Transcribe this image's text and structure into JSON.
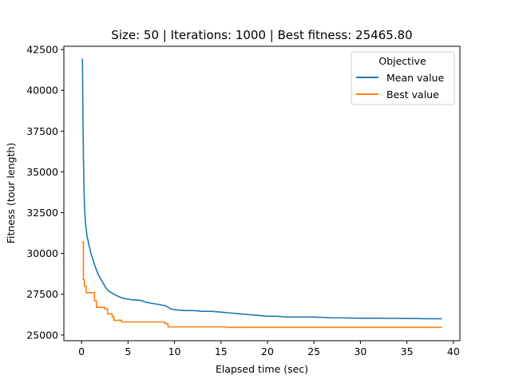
{
  "chart_data": {
    "type": "line",
    "title": "Size: 50 | Iterations: 1000 | Best fitness: 25465.80",
    "xlabel": "Elapsed time (sec)",
    "ylabel": "Fitness (tour length)",
    "xlim": [
      -1.9,
      40.7
    ],
    "ylim": [
      24650,
      42700
    ],
    "xticks": [
      0,
      5,
      10,
      15,
      20,
      25,
      30,
      35,
      40
    ],
    "yticks": [
      25000,
      27500,
      30000,
      32500,
      35000,
      37500,
      40000,
      42500
    ],
    "grid": false,
    "legend": {
      "title": "Objective",
      "placement": "top-right"
    },
    "series": [
      {
        "name": "Mean value",
        "color": "#1f77b4",
        "x": [
          0.1,
          0.15,
          0.2,
          0.25,
          0.3,
          0.4,
          0.5,
          0.6,
          0.7,
          0.8,
          0.9,
          1.0,
          1.2,
          1.4,
          1.6,
          1.8,
          2.0,
          2.3,
          2.6,
          2.9,
          3.2,
          3.5,
          4.0,
          4.5,
          5.0,
          5.5,
          6.0,
          6.5,
          7.0,
          7.5,
          8.0,
          8.5,
          9.0,
          9.3,
          9.6,
          10.0,
          11.0,
          12.0,
          13.0,
          14.0,
          15.0,
          16.0,
          17.0,
          18.0,
          19.0,
          20.0,
          21.0,
          22.0,
          23.0,
          24.0,
          25.0,
          26.0,
          27.0,
          28.0,
          29.0,
          30.0,
          31.0,
          32.0,
          33.0,
          34.0,
          35.0,
          36.0,
          37.0,
          38.0,
          38.7
        ],
        "y": [
          41900,
          38500,
          36000,
          34500,
          33200,
          32000,
          31500,
          31000,
          30800,
          30500,
          30300,
          30000,
          29700,
          29300,
          29000,
          28700,
          28500,
          28200,
          27900,
          27700,
          27600,
          27500,
          27350,
          27250,
          27200,
          27150,
          27150,
          27100,
          27000,
          26950,
          26900,
          26850,
          26800,
          26700,
          26600,
          26550,
          26500,
          26500,
          26450,
          26450,
          26400,
          26350,
          26300,
          26250,
          26200,
          26150,
          26150,
          26100,
          26100,
          26100,
          26100,
          26080,
          26050,
          26050,
          26040,
          26030,
          26030,
          26030,
          26020,
          26020,
          26010,
          26010,
          26000,
          26000,
          26000
        ]
      },
      {
        "name": "Best value",
        "color": "#ff7f0e",
        "x": [
          0.1,
          0.2,
          0.2,
          0.3,
          0.3,
          0.5,
          0.5,
          1.4,
          1.4,
          1.6,
          1.6,
          2.5,
          2.5,
          2.8,
          2.8,
          3.3,
          3.3,
          3.5,
          3.5,
          4.3,
          4.3,
          9.0,
          9.0,
          9.3,
          9.3,
          15.5,
          15.5,
          38.7
        ],
        "y": [
          30700,
          30700,
          28400,
          28400,
          28000,
          28000,
          27600,
          27600,
          27100,
          27100,
          26700,
          26700,
          26600,
          26600,
          26300,
          26300,
          26100,
          26100,
          25900,
          25900,
          25800,
          25800,
          25700,
          25700,
          25500,
          25500,
          25466,
          25466
        ]
      }
    ]
  }
}
